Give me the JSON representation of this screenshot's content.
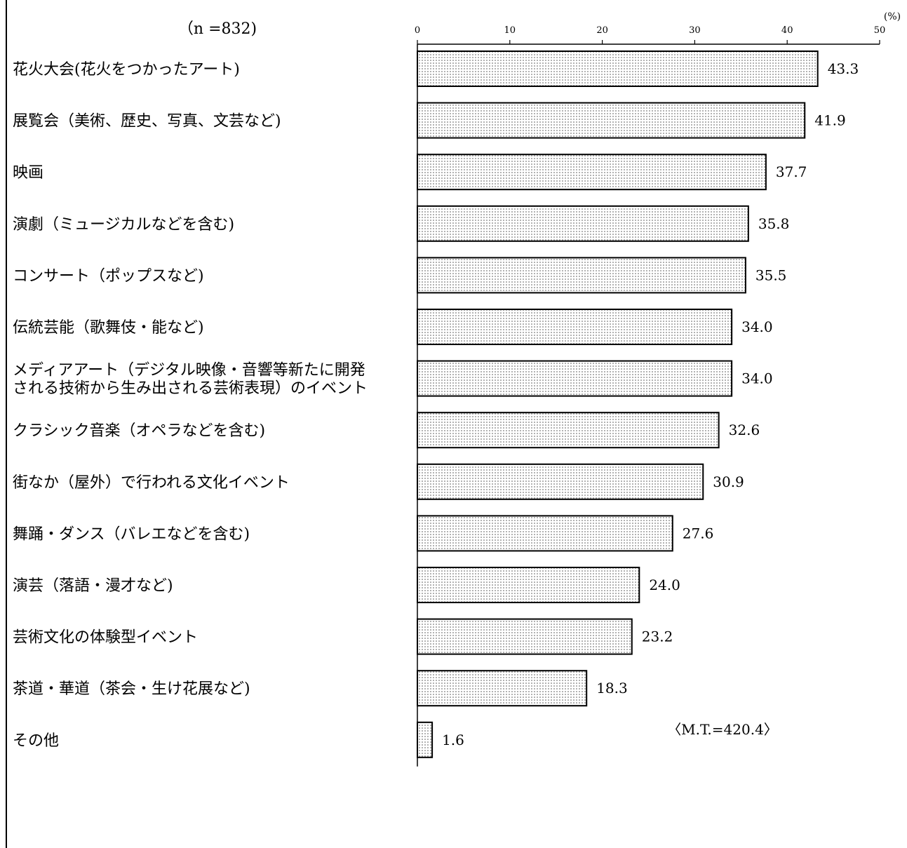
{
  "chart_data": {
    "type": "bar",
    "orientation": "horizontal",
    "sample_label": "（n =832)",
    "unit_label": "(%)",
    "ticks": [
      0,
      10,
      20,
      30,
      40,
      50
    ],
    "xlim": [
      0,
      50
    ],
    "grid": false,
    "bar_fill": "dotted",
    "categories": [
      [
        "花火大会(花火をつかったアート)"
      ],
      [
        "展覧会（美術、歴史、写真、文芸など)"
      ],
      [
        "映画"
      ],
      [
        "演劇（ミュージカルなどを含む)"
      ],
      [
        "コンサート（ポップスなど)"
      ],
      [
        "伝統芸能（歌舞伎・能など)"
      ],
      [
        "メディアアート（デジタル映像・音響等新たに開発",
        "される技術から生み出される芸術表現）のイベント"
      ],
      [
        "クラシック音楽（オペラなどを含む)"
      ],
      [
        "街なか（屋外）で行われる文化イベント"
      ],
      [
        "舞踊・ダンス（バレエなどを含む)"
      ],
      [
        "演芸（落語・漫才など)"
      ],
      [
        "芸術文化の体験型イベント"
      ],
      [
        "茶道・華道（茶会・生け花展など)"
      ],
      [
        "その他"
      ]
    ],
    "values": [
      43.3,
      41.9,
      37.7,
      35.8,
      35.5,
      34.0,
      34.0,
      32.6,
      30.9,
      27.6,
      24.0,
      23.2,
      18.3,
      1.6
    ],
    "value_labels": [
      "43.3",
      "41.9",
      "37.7",
      "35.8",
      "35.5",
      "34.0",
      "34.0",
      "32.6",
      "30.9",
      "27.6",
      "24.0",
      "23.2",
      "18.3",
      "1.6"
    ],
    "annotation": "〈M.T.=420.4〉"
  }
}
